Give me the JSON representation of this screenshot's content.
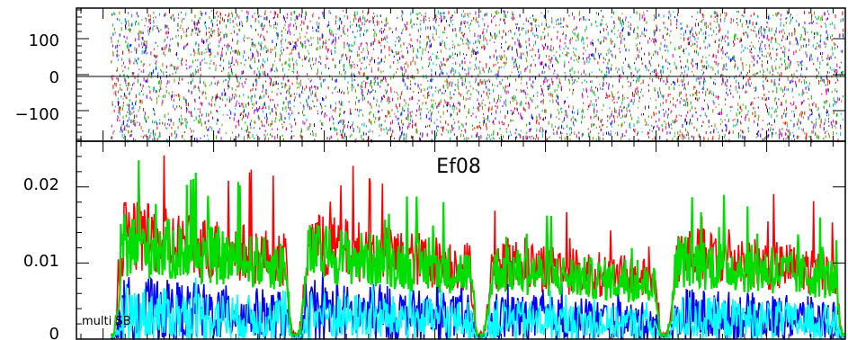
{
  "chart_data": [
    {
      "type": "scatter",
      "title": "",
      "xlabel": "",
      "ylabel": "",
      "ylim": [
        -185,
        185
      ],
      "yticks": [
        "100",
        "0",
        "−100"
      ],
      "ytick_values": [
        100,
        0,
        -100
      ],
      "zero_line": true,
      "series_colors": [
        "#ff0000",
        "#0000ff",
        "#00bb00",
        "#00bbbb",
        "#cc00cc",
        "#888800"
      ],
      "description": "dense dot-dash phase scatter, uniform over full range, data beginning near x index 0.045"
    },
    {
      "type": "line",
      "title": "Ef08",
      "annotation": "multi SB",
      "xlabel": "",
      "ylabel": "",
      "ylim": [
        0,
        0.026
      ],
      "yticks": [
        "0.02",
        "0.01",
        "0"
      ],
      "ytick_values": [
        0.02,
        0.01,
        0
      ],
      "series": [
        {
          "color": "#ff0000",
          "base": 0.012
        },
        {
          "color": "#0000ff",
          "base": 0.0035
        },
        {
          "color": "#00ffff",
          "base": 0.003
        },
        {
          "color": "#00dd00",
          "base": 0.011
        }
      ],
      "segments": [
        {
          "start": 0.05,
          "end": 0.28,
          "level": 1.15
        },
        {
          "start": 0.29,
          "end": 0.52,
          "level": 1.05
        },
        {
          "start": 0.53,
          "end": 0.76,
          "level": 0.85
        },
        {
          "start": 0.77,
          "end": 0.995,
          "level": 0.95
        }
      ]
    }
  ]
}
